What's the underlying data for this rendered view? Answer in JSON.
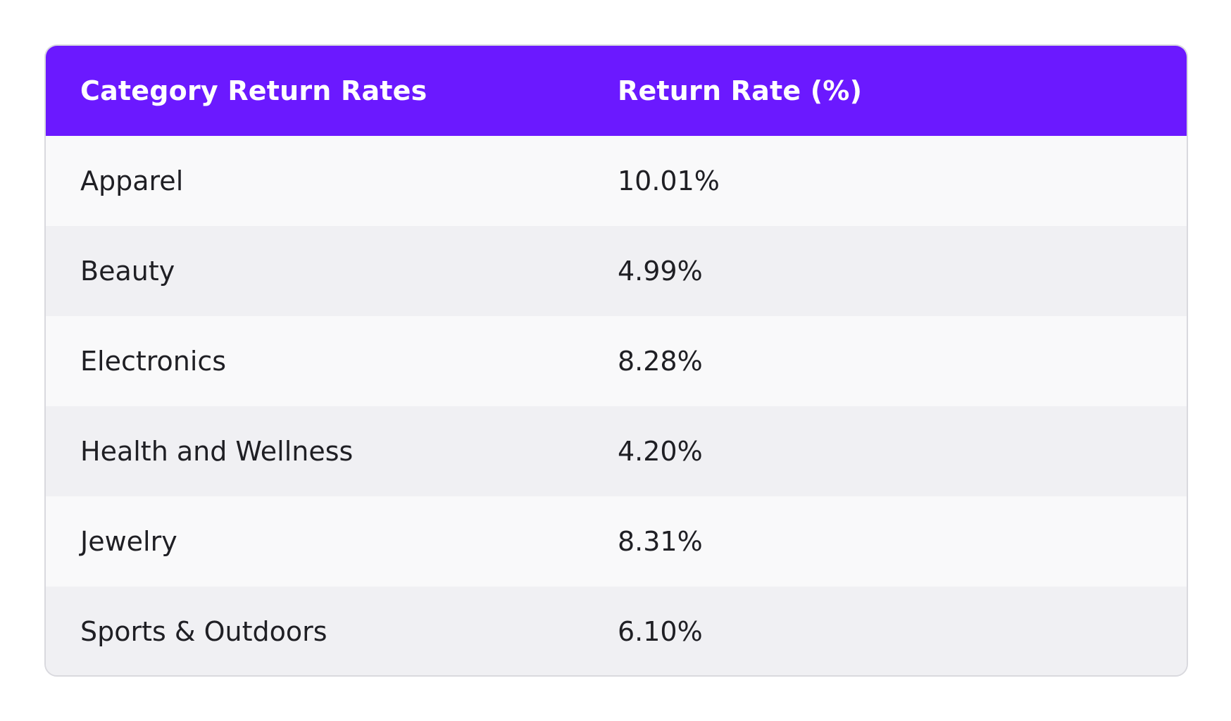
{
  "chart_data": {
    "type": "table",
    "columns": [
      "Category Return Rates",
      "Return Rate (%)"
    ],
    "rows": [
      {
        "category": "Apparel",
        "rate": "10.01%"
      },
      {
        "category": "Beauty",
        "rate": "4.99%"
      },
      {
        "category": "Electronics",
        "rate": "8.28%"
      },
      {
        "category": "Health and Wellness",
        "rate": "4.20%"
      },
      {
        "category": "Jewelry",
        "rate": "8.31%"
      },
      {
        "category": "Sports & Outdoors",
        "rate": "6.10%"
      }
    ],
    "values": [
      10.01,
      4.99,
      8.28,
      4.2,
      8.31,
      6.1
    ]
  },
  "colors": {
    "header_background": "#6b19ff",
    "header_text": "#ffffff",
    "row_light": "#f9f9fa",
    "row_shaded": "#f0f0f3",
    "body_text": "#1f1f24",
    "border": "#d9d9de"
  }
}
